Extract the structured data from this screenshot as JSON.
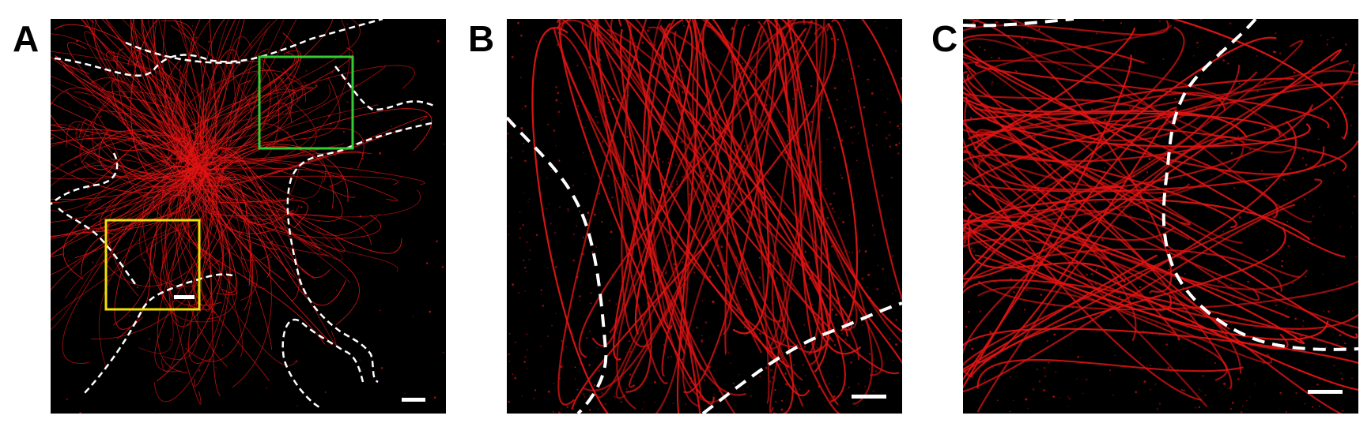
{
  "figure": {
    "panels": [
      {
        "label": "A",
        "content": "microtubule-network-whole-cell",
        "insets": [
          "green-box",
          "yellow-box"
        ],
        "scale_bar": true
      },
      {
        "label": "B",
        "content": "microtubule-network-zoom",
        "scale_bar": true
      },
      {
        "label": "C",
        "content": "microtubule-network-zoom",
        "scale_bar": true
      }
    ],
    "colors": {
      "background": "#000000",
      "filament": "#e01414",
      "outline": "#ffffff",
      "inset_green": "#33cc33",
      "inset_yellow": "#f2e000",
      "page": "#ffffff"
    }
  }
}
